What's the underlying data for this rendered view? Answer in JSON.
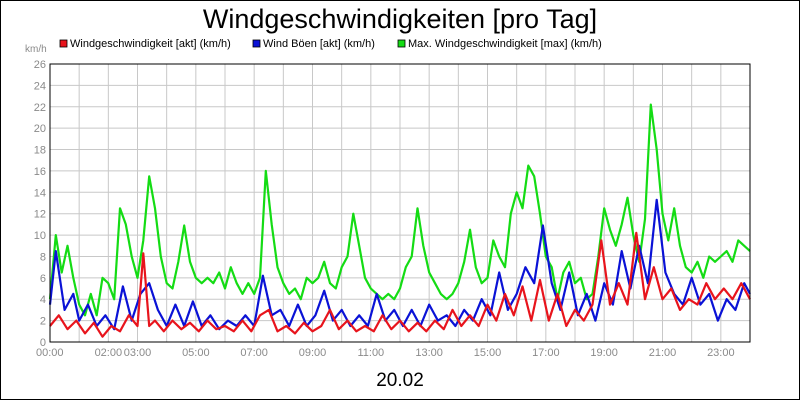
{
  "chart_data": {
    "type": "line",
    "title": "Windgeschwindigkeiten [pro Tag]",
    "ylabel": "km/h",
    "xlabel": "20.02",
    "ylim": [
      0,
      26
    ],
    "yticks": [
      0,
      2,
      4,
      6,
      8,
      10,
      12,
      14,
      16,
      18,
      20,
      22,
      24,
      26
    ],
    "xlim": [
      0,
      24
    ],
    "xticks": [
      {
        "label": "00:00",
        "hour": 0
      },
      {
        "label": "02:00",
        "hour": 2
      },
      {
        "label": "03:00",
        "hour": 3
      },
      {
        "label": "05:00",
        "hour": 5
      },
      {
        "label": "07:00",
        "hour": 7
      },
      {
        "label": "09:00",
        "hour": 9
      },
      {
        "label": "11:00",
        "hour": 11
      },
      {
        "label": "13:00",
        "hour": 13
      },
      {
        "label": "15:00",
        "hour": 15
      },
      {
        "label": "17:00",
        "hour": 17
      },
      {
        "label": "19:00",
        "hour": 19
      },
      {
        "label": "21:00",
        "hour": 21
      },
      {
        "label": "23:00",
        "hour": 23
      }
    ],
    "grid": true,
    "legend_position": "top",
    "series": [
      {
        "name": "Windgeschwindigkeit [akt] (km/h)",
        "color": "#e8141c",
        "points": [
          [
            0.0,
            1.5
          ],
          [
            0.3,
            2.5
          ],
          [
            0.6,
            1.2
          ],
          [
            0.9,
            2.0
          ],
          [
            1.2,
            0.8
          ],
          [
            1.5,
            1.8
          ],
          [
            1.8,
            0.5
          ],
          [
            2.1,
            1.5
          ],
          [
            2.4,
            1.0
          ],
          [
            2.7,
            2.5
          ],
          [
            3.0,
            1.5
          ],
          [
            3.2,
            8.3
          ],
          [
            3.4,
            1.5
          ],
          [
            3.6,
            2.0
          ],
          [
            3.9,
            1.0
          ],
          [
            4.2,
            2.0
          ],
          [
            4.5,
            1.2
          ],
          [
            4.8,
            1.8
          ],
          [
            5.1,
            1.0
          ],
          [
            5.4,
            2.0
          ],
          [
            5.7,
            1.2
          ],
          [
            6.0,
            1.5
          ],
          [
            6.3,
            1.0
          ],
          [
            6.6,
            2.0
          ],
          [
            6.9,
            1.0
          ],
          [
            7.2,
            2.5
          ],
          [
            7.5,
            3.0
          ],
          [
            7.8,
            1.0
          ],
          [
            8.1,
            1.5
          ],
          [
            8.4,
            0.8
          ],
          [
            8.7,
            1.8
          ],
          [
            9.0,
            1.0
          ],
          [
            9.3,
            1.5
          ],
          [
            9.6,
            3.0
          ],
          [
            9.9,
            1.2
          ],
          [
            10.2,
            2.0
          ],
          [
            10.5,
            1.0
          ],
          [
            10.8,
            1.5
          ],
          [
            11.1,
            1.0
          ],
          [
            11.4,
            2.5
          ],
          [
            11.7,
            1.2
          ],
          [
            12.0,
            2.0
          ],
          [
            12.3,
            1.0
          ],
          [
            12.6,
            1.8
          ],
          [
            12.9,
            1.0
          ],
          [
            13.2,
            2.0
          ],
          [
            13.5,
            1.2
          ],
          [
            13.8,
            3.0
          ],
          [
            14.1,
            1.5
          ],
          [
            14.4,
            2.5
          ],
          [
            14.7,
            1.5
          ],
          [
            15.0,
            3.5
          ],
          [
            15.3,
            2.0
          ],
          [
            15.6,
            4.5
          ],
          [
            15.9,
            2.5
          ],
          [
            16.2,
            5.2
          ],
          [
            16.5,
            2.0
          ],
          [
            16.8,
            5.8
          ],
          [
            17.1,
            2.0
          ],
          [
            17.4,
            4.5
          ],
          [
            17.7,
            1.5
          ],
          [
            18.0,
            3.0
          ],
          [
            18.3,
            2.0
          ],
          [
            18.6,
            3.5
          ],
          [
            18.9,
            9.5
          ],
          [
            19.2,
            3.5
          ],
          [
            19.5,
            5.5
          ],
          [
            19.8,
            3.5
          ],
          [
            20.1,
            10.2
          ],
          [
            20.4,
            4.0
          ],
          [
            20.7,
            7.0
          ],
          [
            21.0,
            4.0
          ],
          [
            21.3,
            5.0
          ],
          [
            21.6,
            3.0
          ],
          [
            21.9,
            4.0
          ],
          [
            22.2,
            3.5
          ],
          [
            22.5,
            5.5
          ],
          [
            22.8,
            4.0
          ],
          [
            23.1,
            5.0
          ],
          [
            23.4,
            4.0
          ],
          [
            23.7,
            5.5
          ],
          [
            24.0,
            4.0
          ]
        ]
      },
      {
        "name": "Wind Böen [akt] (km/h)",
        "color": "#0a12d6",
        "points": [
          [
            0.0,
            3.5
          ],
          [
            0.2,
            8.5
          ],
          [
            0.5,
            3.0
          ],
          [
            0.8,
            4.5
          ],
          [
            1.0,
            2.0
          ],
          [
            1.3,
            3.5
          ],
          [
            1.6,
            1.5
          ],
          [
            1.9,
            2.5
          ],
          [
            2.2,
            1.2
          ],
          [
            2.5,
            5.2
          ],
          [
            2.8,
            2.0
          ],
          [
            3.1,
            4.5
          ],
          [
            3.4,
            5.5
          ],
          [
            3.7,
            3.0
          ],
          [
            4.0,
            1.5
          ],
          [
            4.3,
            3.5
          ],
          [
            4.6,
            1.5
          ],
          [
            4.9,
            3.8
          ],
          [
            5.2,
            1.5
          ],
          [
            5.5,
            2.5
          ],
          [
            5.8,
            1.2
          ],
          [
            6.1,
            2.0
          ],
          [
            6.4,
            1.5
          ],
          [
            6.7,
            2.5
          ],
          [
            7.0,
            1.5
          ],
          [
            7.3,
            6.2
          ],
          [
            7.6,
            2.5
          ],
          [
            7.9,
            3.0
          ],
          [
            8.2,
            1.5
          ],
          [
            8.5,
            3.5
          ],
          [
            8.8,
            1.5
          ],
          [
            9.1,
            2.5
          ],
          [
            9.4,
            4.8
          ],
          [
            9.7,
            2.0
          ],
          [
            10.0,
            3.0
          ],
          [
            10.3,
            1.5
          ],
          [
            10.6,
            2.5
          ],
          [
            10.9,
            1.5
          ],
          [
            11.2,
            4.5
          ],
          [
            11.5,
            2.0
          ],
          [
            11.8,
            3.0
          ],
          [
            12.1,
            1.5
          ],
          [
            12.4,
            3.0
          ],
          [
            12.7,
            1.5
          ],
          [
            13.0,
            3.5
          ],
          [
            13.3,
            2.0
          ],
          [
            13.6,
            2.5
          ],
          [
            13.9,
            1.5
          ],
          [
            14.2,
            3.0
          ],
          [
            14.5,
            2.0
          ],
          [
            14.8,
            4.0
          ],
          [
            15.1,
            2.5
          ],
          [
            15.4,
            6.5
          ],
          [
            15.7,
            3.0
          ],
          [
            16.0,
            4.5
          ],
          [
            16.3,
            7.0
          ],
          [
            16.6,
            5.5
          ],
          [
            16.9,
            10.9
          ],
          [
            17.2,
            5.5
          ],
          [
            17.5,
            3.0
          ],
          [
            17.8,
            6.5
          ],
          [
            18.1,
            2.5
          ],
          [
            18.4,
            4.5
          ],
          [
            18.7,
            2.0
          ],
          [
            19.0,
            5.5
          ],
          [
            19.3,
            3.5
          ],
          [
            19.6,
            8.5
          ],
          [
            19.9,
            5.0
          ],
          [
            20.2,
            9.0
          ],
          [
            20.5,
            5.5
          ],
          [
            20.8,
            13.3
          ],
          [
            21.1,
            6.5
          ],
          [
            21.4,
            4.5
          ],
          [
            21.7,
            3.5
          ],
          [
            22.0,
            6.0
          ],
          [
            22.3,
            3.5
          ],
          [
            22.6,
            4.5
          ],
          [
            22.9,
            2.0
          ],
          [
            23.2,
            4.0
          ],
          [
            23.5,
            3.0
          ],
          [
            23.8,
            5.5
          ],
          [
            24.0,
            4.5
          ]
        ]
      },
      {
        "name": "Max. Windgeschwindigkeit [max] (km/h)",
        "color": "#14dc14",
        "points": [
          [
            0.0,
            4.0
          ],
          [
            0.2,
            10.0
          ],
          [
            0.4,
            6.5
          ],
          [
            0.6,
            9.0
          ],
          [
            0.8,
            6.0
          ],
          [
            1.0,
            3.5
          ],
          [
            1.2,
            2.5
          ],
          [
            1.4,
            4.5
          ],
          [
            1.6,
            2.5
          ],
          [
            1.8,
            6.0
          ],
          [
            2.0,
            5.5
          ],
          [
            2.2,
            4.0
          ],
          [
            2.4,
            12.5
          ],
          [
            2.6,
            11.0
          ],
          [
            2.8,
            8.0
          ],
          [
            3.0,
            6.0
          ],
          [
            3.2,
            9.5
          ],
          [
            3.4,
            15.5
          ],
          [
            3.6,
            12.5
          ],
          [
            3.8,
            8.0
          ],
          [
            4.0,
            5.5
          ],
          [
            4.2,
            5.0
          ],
          [
            4.4,
            7.5
          ],
          [
            4.6,
            10.9
          ],
          [
            4.8,
            7.5
          ],
          [
            5.0,
            6.0
          ],
          [
            5.2,
            5.5
          ],
          [
            5.4,
            6.0
          ],
          [
            5.6,
            5.5
          ],
          [
            5.8,
            6.5
          ],
          [
            6.0,
            5.0
          ],
          [
            6.2,
            7.0
          ],
          [
            6.4,
            5.5
          ],
          [
            6.6,
            4.5
          ],
          [
            6.8,
            5.5
          ],
          [
            7.0,
            4.5
          ],
          [
            7.2,
            6.0
          ],
          [
            7.4,
            16.0
          ],
          [
            7.6,
            11.0
          ],
          [
            7.8,
            7.0
          ],
          [
            8.0,
            5.5
          ],
          [
            8.2,
            4.5
          ],
          [
            8.4,
            5.0
          ],
          [
            8.6,
            4.0
          ],
          [
            8.8,
            6.0
          ],
          [
            9.0,
            5.5
          ],
          [
            9.2,
            6.0
          ],
          [
            9.4,
            7.5
          ],
          [
            9.6,
            5.5
          ],
          [
            9.8,
            5.0
          ],
          [
            10.0,
            7.0
          ],
          [
            10.2,
            8.0
          ],
          [
            10.4,
            12.0
          ],
          [
            10.6,
            9.0
          ],
          [
            10.8,
            6.0
          ],
          [
            11.0,
            5.0
          ],
          [
            11.2,
            4.5
          ],
          [
            11.4,
            4.0
          ],
          [
            11.6,
            4.5
          ],
          [
            11.8,
            4.0
          ],
          [
            12.0,
            5.0
          ],
          [
            12.2,
            7.0
          ],
          [
            12.4,
            8.0
          ],
          [
            12.6,
            12.5
          ],
          [
            12.8,
            9.0
          ],
          [
            13.0,
            6.5
          ],
          [
            13.2,
            5.5
          ],
          [
            13.4,
            4.5
          ],
          [
            13.6,
            4.0
          ],
          [
            13.8,
            4.5
          ],
          [
            14.0,
            5.5
          ],
          [
            14.2,
            7.5
          ],
          [
            14.4,
            10.5
          ],
          [
            14.6,
            7.0
          ],
          [
            14.8,
            5.5
          ],
          [
            15.0,
            6.0
          ],
          [
            15.2,
            9.5
          ],
          [
            15.4,
            8.0
          ],
          [
            15.6,
            7.0
          ],
          [
            15.8,
            12.0
          ],
          [
            16.0,
            14.0
          ],
          [
            16.2,
            12.5
          ],
          [
            16.4,
            16.5
          ],
          [
            16.6,
            15.5
          ],
          [
            16.8,
            12.0
          ],
          [
            17.0,
            8.0
          ],
          [
            17.2,
            7.0
          ],
          [
            17.4,
            4.0
          ],
          [
            17.6,
            6.5
          ],
          [
            17.8,
            7.5
          ],
          [
            18.0,
            5.5
          ],
          [
            18.2,
            6.0
          ],
          [
            18.4,
            4.0
          ],
          [
            18.6,
            4.5
          ],
          [
            18.8,
            8.0
          ],
          [
            19.0,
            12.5
          ],
          [
            19.2,
            10.5
          ],
          [
            19.4,
            9.0
          ],
          [
            19.6,
            11.0
          ],
          [
            19.8,
            13.5
          ],
          [
            20.0,
            10.0
          ],
          [
            20.2,
            7.5
          ],
          [
            20.4,
            11.5
          ],
          [
            20.6,
            22.2
          ],
          [
            20.8,
            18.0
          ],
          [
            21.0,
            12.0
          ],
          [
            21.2,
            9.5
          ],
          [
            21.4,
            12.5
          ],
          [
            21.6,
            9.0
          ],
          [
            21.8,
            7.0
          ],
          [
            22.0,
            6.5
          ],
          [
            22.2,
            7.5
          ],
          [
            22.4,
            6.0
          ],
          [
            22.6,
            8.0
          ],
          [
            22.8,
            7.5
          ],
          [
            23.0,
            8.0
          ],
          [
            23.2,
            8.5
          ],
          [
            23.4,
            7.5
          ],
          [
            23.6,
            9.5
          ],
          [
            23.8,
            9.0
          ],
          [
            24.0,
            8.5
          ]
        ]
      }
    ]
  }
}
